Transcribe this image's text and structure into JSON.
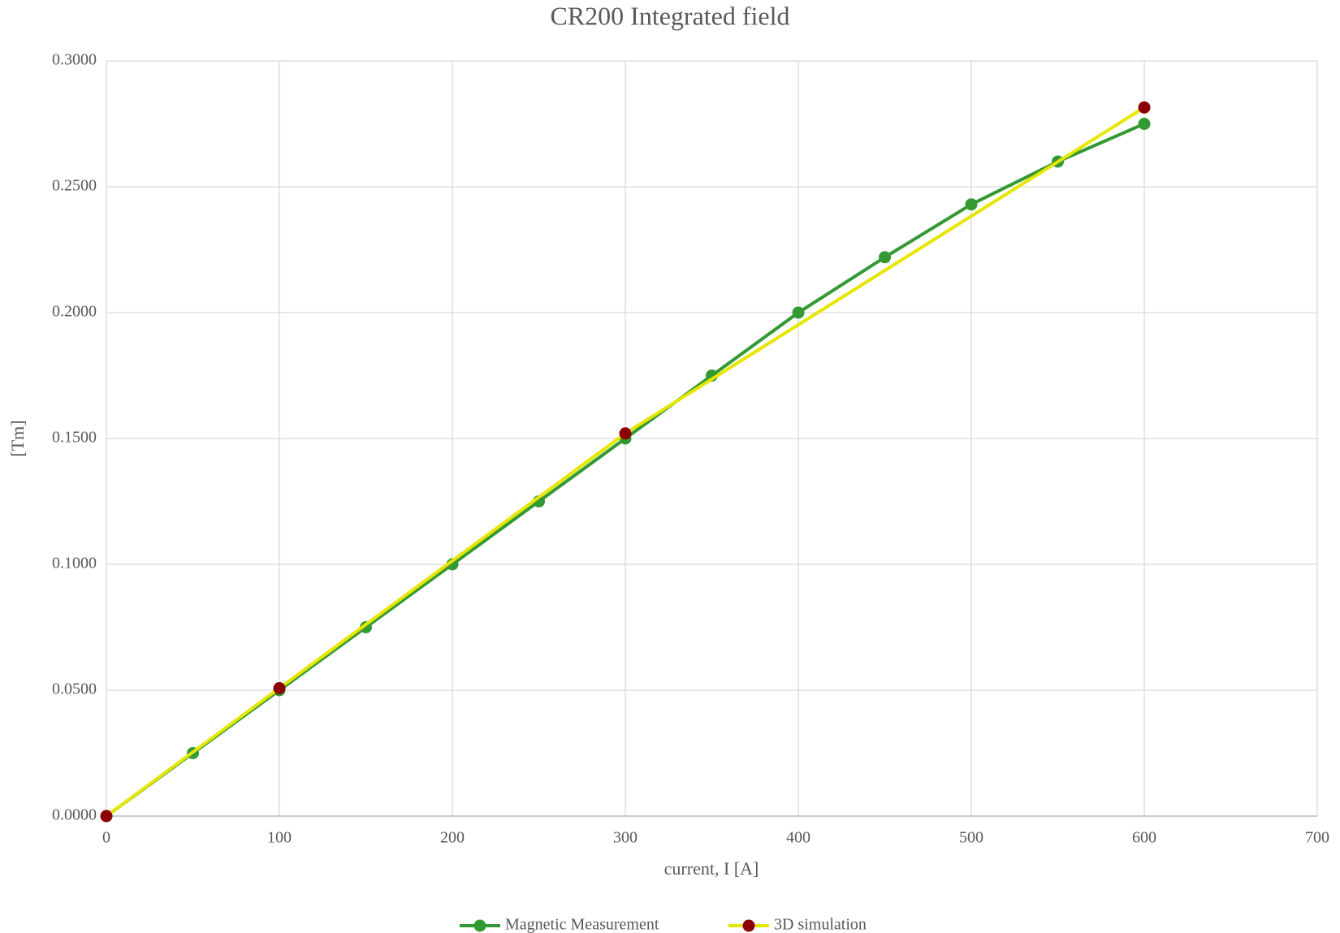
{
  "chart_data": {
    "type": "line",
    "title": "CR200 Integrated field",
    "x_label": "current, I [A]",
    "y_label": "[Tm]",
    "xlim": [
      0,
      700
    ],
    "xticks": [
      0,
      100,
      200,
      300,
      400,
      500,
      600,
      700
    ],
    "ylim": [
      0,
      0.3
    ],
    "yticks": [
      {
        "value": 0,
        "label": "0.0000"
      },
      {
        "value": 0.05,
        "label": "0.0500"
      },
      {
        "value": 0.1,
        "label": "0.1000"
      },
      {
        "value": 0.15,
        "label": "0.1500"
      },
      {
        "value": 0.2,
        "label": "0.2000"
      },
      {
        "value": 0.25,
        "label": "0.2500"
      },
      {
        "value": 0.3,
        "label": "0.3000"
      }
    ],
    "grid": true,
    "legend": "bottom",
    "series": [
      {
        "name": "Magnetic Measurement",
        "color": "#339933",
        "marker_color": "#339933",
        "x": [
          0,
          50,
          100,
          150,
          200,
          250,
          300,
          350,
          400,
          450,
          500,
          550,
          600
        ],
        "values": [
          0,
          0.025,
          0.05,
          0.075,
          0.1,
          0.125,
          0.15,
          0.175,
          0.2,
          0.222,
          0.243,
          0.26,
          0.275
        ]
      },
      {
        "name": "3D simulation",
        "color": "#e6e600",
        "marker_color": "#8b0000",
        "x": [
          0,
          100,
          300,
          600
        ],
        "values": [
          0,
          0.0508,
          0.152,
          0.2815
        ]
      }
    ]
  }
}
